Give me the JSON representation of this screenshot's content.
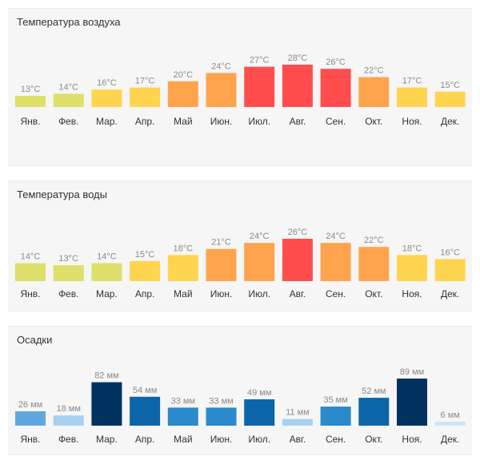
{
  "chart_data": [
    {
      "type": "bar",
      "title": "Температура воздуха",
      "categories": [
        "Янв.",
        "Фев.",
        "Мар.",
        "Апр.",
        "Май",
        "Июн.",
        "Июл.",
        "Авг.",
        "Сен.",
        "Окт.",
        "Ноя.",
        "Дек."
      ],
      "values": [
        13,
        14,
        16,
        17,
        20,
        24,
        27,
        28,
        26,
        22,
        17,
        15
      ],
      "value_labels": [
        "13°C",
        "14°C",
        "16°C",
        "17°C",
        "20°C",
        "24°C",
        "27°C",
        "28°C",
        "26°C",
        "22°C",
        "17°C",
        "15°C"
      ],
      "unit": "°C",
      "ylim": [
        0,
        28
      ],
      "colors": [
        "#dde06a",
        "#dde06a",
        "#ffd44f",
        "#ffd44f",
        "#ffa34d",
        "#ffa34d",
        "#ff4d4d",
        "#ff4d4d",
        "#ff4d4d",
        "#ffa34d",
        "#ffd44f",
        "#ffd44f"
      ]
    },
    {
      "type": "bar",
      "title": "Температура воды",
      "categories": [
        "Янв.",
        "Фев.",
        "Мар.",
        "Апр.",
        "Май",
        "Июн.",
        "Июл.",
        "Авг.",
        "Сен.",
        "Окт.",
        "Ноя.",
        "Дек."
      ],
      "values": [
        14,
        13,
        14,
        15,
        18,
        21,
        24,
        26,
        24,
        22,
        18,
        16
      ],
      "value_labels": [
        "14°C",
        "13°C",
        "14°C",
        "15°C",
        "18°C",
        "21°C",
        "24°C",
        "26°C",
        "24°C",
        "22°C",
        "18°C",
        "16°C"
      ],
      "unit": "°C",
      "ylim": [
        0,
        26
      ],
      "colors": [
        "#dde06a",
        "#dde06a",
        "#dde06a",
        "#ffd44f",
        "#ffd44f",
        "#ffa34d",
        "#ffa34d",
        "#ff4d4d",
        "#ffa34d",
        "#ffa34d",
        "#ffd44f",
        "#ffd44f"
      ]
    },
    {
      "type": "bar",
      "title": "Осадки",
      "categories": [
        "Янв.",
        "Фев.",
        "Мар.",
        "Апр.",
        "Май",
        "Июн.",
        "Июл.",
        "Авг.",
        "Сен.",
        "Окт.",
        "Ноя.",
        "Дек."
      ],
      "values": [
        26,
        18,
        82,
        54,
        33,
        33,
        49,
        11,
        35,
        52,
        89,
        6
      ],
      "value_labels": [
        "26 мм",
        "18 мм",
        "82 мм",
        "54 мм",
        "33 мм",
        "33 мм",
        "49 мм",
        "11 мм",
        "35 мм",
        "52 мм",
        "89 мм",
        "6 мм"
      ],
      "unit": "мм",
      "ylim": [
        0,
        89
      ],
      "colors": [
        "#5fa8df",
        "#a8d1f1",
        "#00325f",
        "#0c65a8",
        "#2b8acb",
        "#2b8acb",
        "#0c65a8",
        "#a8d1f1",
        "#2b8acb",
        "#0c65a8",
        "#00325f",
        "#cce4f7"
      ]
    }
  ]
}
